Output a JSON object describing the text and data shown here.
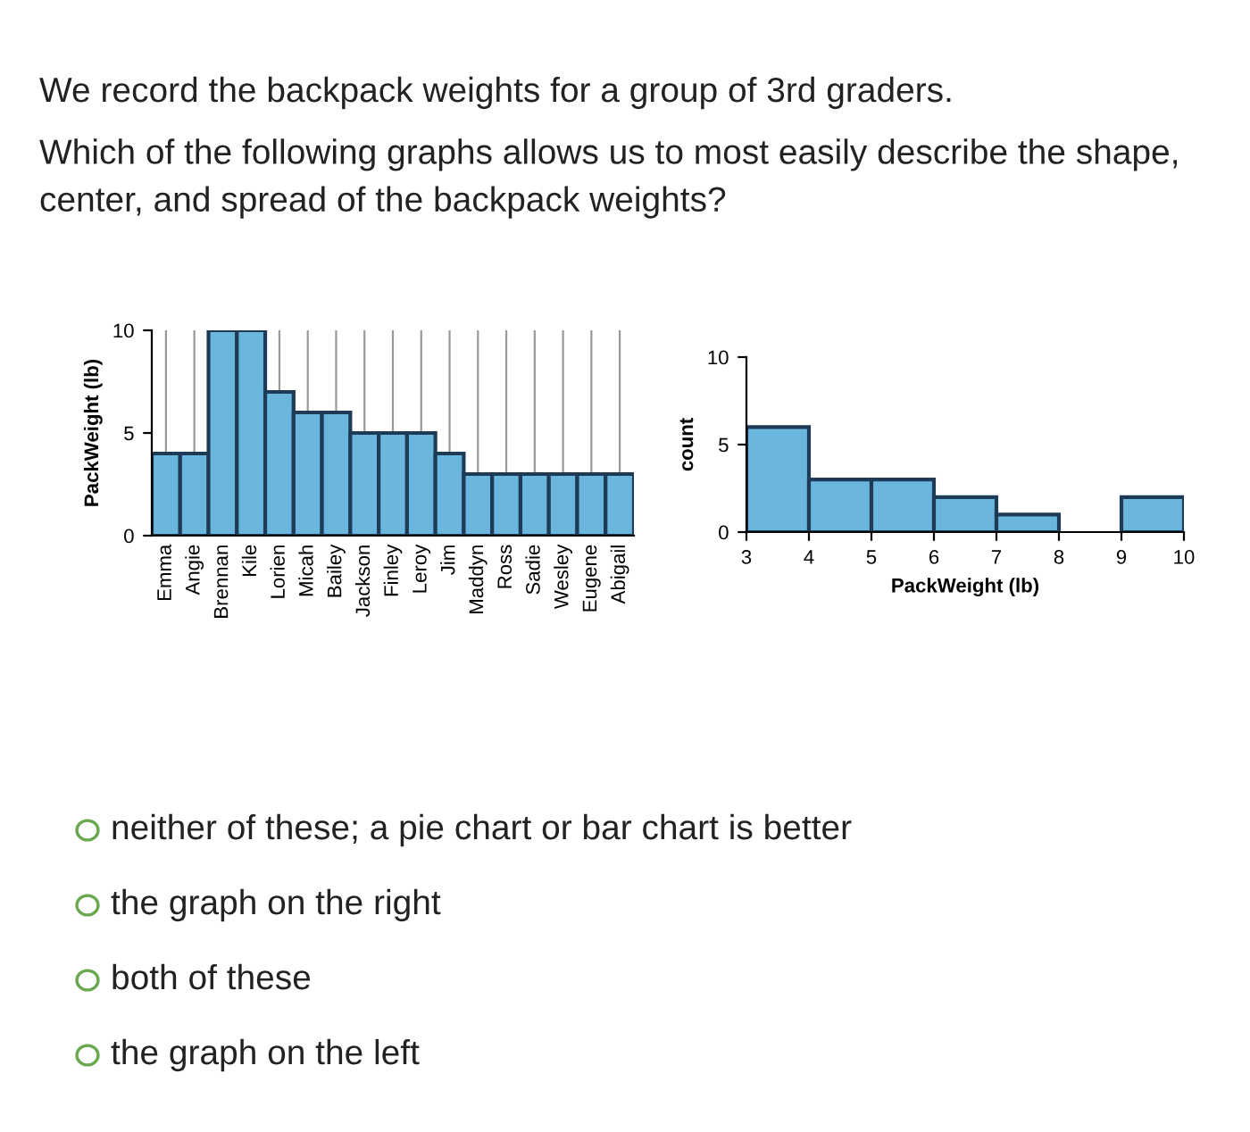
{
  "chart_data": [
    {
      "type": "bar",
      "title": "We record the backpack weights for a group of 3rd graders.",
      "subtitle": "Which of the following graphs allows us to most easily describe the shape, center, and spread of the backpack weights?",
      "categories": [
        "Emma",
        "Angie",
        "Brennan",
        "Kile",
        "Lorien",
        "Micah",
        "Bailey",
        "Jackson",
        "Finley",
        "Leroy",
        "Jim",
        "Maddyn",
        "Ross",
        "Sadie",
        "Wesley",
        "Eugene",
        "Abigail"
      ],
      "values": [
        4,
        4,
        10,
        10,
        7,
        6,
        6,
        5,
        5,
        5,
        4,
        3,
        3,
        3,
        3,
        3,
        3
      ],
      "color": "#6bb6dc",
      "ylabel": "PackWeight (lb)",
      "ylim": [
        0,
        10
      ],
      "yticks": [
        0,
        5,
        10
      ],
      "grid": "x",
      "annotations": [
        "neither of these; a pie chart or bar chart is better",
        "the graph on the right",
        "both of these",
        "the graph on the left"
      ]
    },
    {
      "type": "histogram",
      "bins": [
        3,
        4,
        5,
        6,
        7,
        8,
        9,
        10
      ],
      "values": [
        6,
        3,
        3,
        2,
        1,
        0,
        2
      ],
      "color": "#6bb6dc",
      "xlabel": "PackWeight (lb)",
      "ylabel": "count",
      "xlim": [
        3,
        10
      ],
      "xticks": [
        3,
        4,
        5,
        6,
        7,
        8,
        9,
        10
      ],
      "ylim": [
        0,
        10
      ],
      "yticks": [
        0,
        5,
        10
      ],
      "grid": false
    }
  ]
}
